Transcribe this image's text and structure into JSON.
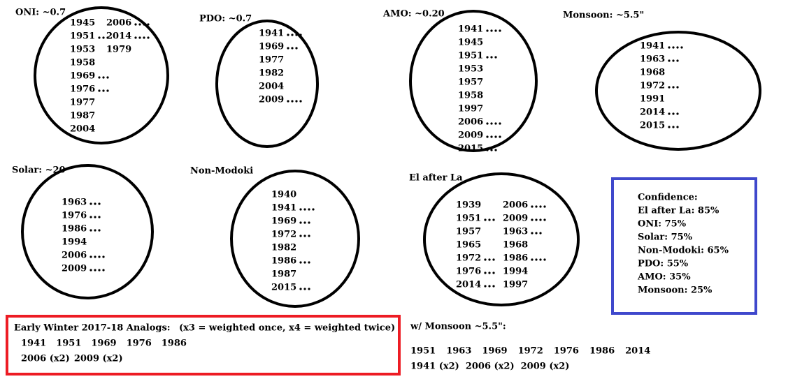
{
  "panels": [
    {
      "title": "ONI: ~0.7",
      "columns": [
        [
          {
            "year": "1945",
            "dots": 0
          },
          {
            "year": "1951",
            "dots": 3
          },
          {
            "year": "1953",
            "dots": 0
          },
          {
            "year": "1958",
            "dots": 0
          },
          {
            "year": "1969",
            "dots": 3
          },
          {
            "year": "1976",
            "dots": 3
          },
          {
            "year": "1977",
            "dots": 0
          },
          {
            "year": "1987",
            "dots": 0
          },
          {
            "year": "2004",
            "dots": 0
          }
        ],
        [
          {
            "year": "2006",
            "dots": 4
          },
          {
            "year": "2014",
            "dots": 4
          },
          {
            "year": "1979",
            "dots": 0
          }
        ]
      ]
    },
    {
      "title": "PDO: ~0.7",
      "columns": [
        [
          {
            "year": "1941",
            "dots": 4
          },
          {
            "year": "1969",
            "dots": 3
          },
          {
            "year": "1977",
            "dots": 0
          },
          {
            "year": "1982",
            "dots": 0
          },
          {
            "year": "2004",
            "dots": 0
          },
          {
            "year": "2009",
            "dots": 4
          }
        ]
      ]
    },
    {
      "title": "AMO: ~0.20",
      "columns": [
        [
          {
            "year": "1941",
            "dots": 4
          },
          {
            "year": "1945",
            "dots": 0
          },
          {
            "year": "1951",
            "dots": 3
          },
          {
            "year": "1953",
            "dots": 0
          },
          {
            "year": "1957",
            "dots": 0
          },
          {
            "year": "1958",
            "dots": 0
          },
          {
            "year": "1997",
            "dots": 0
          },
          {
            "year": "2006",
            "dots": 4
          },
          {
            "year": "2009",
            "dots": 4
          },
          {
            "year": "2015",
            "dots": 3
          }
        ]
      ]
    },
    {
      "title": "Monsoon: ~5.5\"",
      "columns": [
        [
          {
            "year": "1941",
            "dots": 4
          },
          {
            "year": "1963",
            "dots": 3
          },
          {
            "year": "1968",
            "dots": 0
          },
          {
            "year": "1972",
            "dots": 3
          },
          {
            "year": "1991",
            "dots": 0
          },
          {
            "year": "2014",
            "dots": 3
          },
          {
            "year": "2015",
            "dots": 3
          }
        ]
      ]
    },
    {
      "title": "Solar: ~20",
      "columns": [
        [
          {
            "year": "1963",
            "dots": 3
          },
          {
            "year": "1976",
            "dots": 3
          },
          {
            "year": "1986",
            "dots": 3
          },
          {
            "year": "1994",
            "dots": 0
          },
          {
            "year": "2006",
            "dots": 4
          },
          {
            "year": "2009",
            "dots": 4
          }
        ]
      ]
    },
    {
      "title": "Non-Modoki",
      "columns": [
        [
          {
            "year": "1940",
            "dots": 0
          },
          {
            "year": "1941",
            "dots": 4
          },
          {
            "year": "1969",
            "dots": 3
          },
          {
            "year": "1972",
            "dots": 3
          },
          {
            "year": "1982",
            "dots": 0
          },
          {
            "year": "1986",
            "dots": 3
          },
          {
            "year": "1987",
            "dots": 0
          },
          {
            "year": "2015",
            "dots": 3
          }
        ]
      ]
    },
    {
      "title": "El after La",
      "columns": [
        [
          {
            "year": "1939",
            "dots": 0
          },
          {
            "year": "1951",
            "dots": 3
          },
          {
            "year": "1957",
            "dots": 0
          },
          {
            "year": "1965",
            "dots": 0
          },
          {
            "year": "1972",
            "dots": 3
          },
          {
            "year": "1976",
            "dots": 3
          },
          {
            "year": "2014",
            "dots": 3
          }
        ],
        [
          {
            "year": "2006",
            "dots": 4
          },
          {
            "year": "2009",
            "dots": 4
          },
          {
            "year": "1963",
            "dots": 3
          },
          {
            "year": "1968",
            "dots": 0
          },
          {
            "year": "1986",
            "dots": 4
          },
          {
            "year": "1994",
            "dots": 0
          },
          {
            "year": "1997",
            "dots": 0
          }
        ]
      ]
    }
  ],
  "confidence": {
    "title": "Confidence:",
    "items": [
      "El after La: 85%",
      "ONI: 75%",
      "Solar: 75%",
      "Non-Modoki: 65%",
      "PDO: 55%",
      "AMO: 35%",
      "Monsoon: 25%"
    ]
  },
  "analogs": {
    "title": "Early Winter 2017-18 Analogs:",
    "note": "(x3 = weighted once, x4 = weighted twice)",
    "rows": [
      [
        "1941",
        "1951",
        "1969",
        "1976",
        "1986"
      ],
      [
        "2006 (x2)",
        "2009 (x2)"
      ]
    ]
  },
  "monsoon_analogs": {
    "title": "w/ Monsoon ~5.5\":",
    "rows": [
      [
        "1951",
        "1963",
        "1969",
        "1972",
        "1976",
        "1986",
        "2014"
      ],
      [
        "1941 (x2)",
        "2006 (x2)",
        "2009 (x2)"
      ]
    ]
  }
}
